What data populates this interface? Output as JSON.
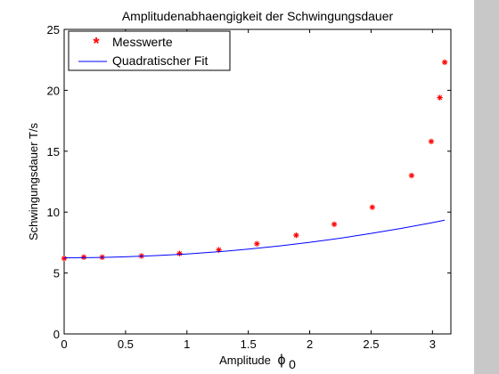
{
  "chart_data": {
    "type": "scatter",
    "title": "Amplitudenabhaengigkeit der Schwingungsdauer",
    "xlabel": "Amplitude",
    "xlabel_symbol": "ϕ",
    "xlabel_subscript": "0",
    "ylabel": "Schwingungsdauer T/s",
    "xlim": [
      0,
      3.15
    ],
    "ylim": [
      0,
      25
    ],
    "xticks": [
      "0",
      "0.5",
      "1",
      "1.5",
      "2",
      "2.5",
      "3"
    ],
    "yticks": [
      "0",
      "5",
      "10",
      "15",
      "20",
      "25"
    ],
    "legend_position": "top-left",
    "grid": false,
    "series": [
      {
        "name": "Messwerte",
        "kind": "markers",
        "marker": "*",
        "color": "#ff0000",
        "x": [
          0.0,
          0.16,
          0.31,
          0.63,
          0.94,
          1.26,
          1.57,
          1.89,
          2.2,
          2.51,
          2.83,
          2.99,
          3.06,
          3.1
        ],
        "y": [
          6.2,
          6.3,
          6.3,
          6.4,
          6.6,
          6.9,
          7.4,
          8.1,
          9.0,
          10.4,
          13.0,
          15.8,
          19.4,
          22.3
        ]
      },
      {
        "name": "Quadratischer Fit",
        "kind": "line",
        "color": "#0000ff",
        "x": [
          0.0,
          0.25,
          0.5,
          0.75,
          1.0,
          1.25,
          1.5,
          1.75,
          2.0,
          2.25,
          2.5,
          2.75,
          3.0,
          3.1
        ],
        "y": [
          6.25,
          6.27,
          6.33,
          6.43,
          6.56,
          6.74,
          6.96,
          7.22,
          7.52,
          7.86,
          8.25,
          8.67,
          9.14,
          9.34
        ]
      }
    ]
  }
}
